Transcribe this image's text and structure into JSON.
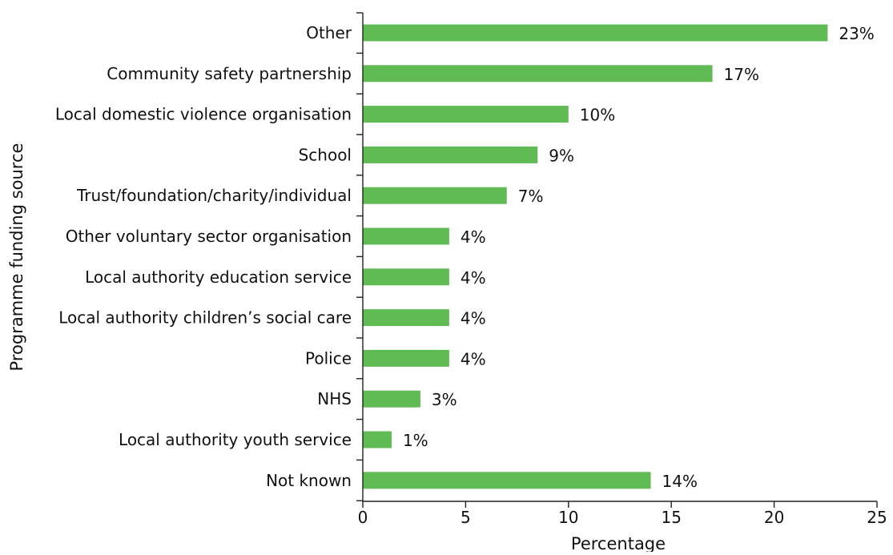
{
  "chart_data": {
    "type": "bar",
    "orientation": "horizontal",
    "categories": [
      "Other",
      "Community safety partnership",
      "Local domestic violence organisation",
      "School",
      "Trust/foundation/charity/individual",
      "Other voluntary sector organisation",
      "Local authority education service",
      "Local authority children’s social care",
      "Police",
      "NHS",
      "Local authority youth service",
      "Not known"
    ],
    "values": [
      22.6,
      17,
      10,
      8.5,
      7,
      4.2,
      4.2,
      4.2,
      4.2,
      2.8,
      1.4,
      14
    ],
    "data_labels": [
      "23%",
      "17%",
      "10%",
      "9%",
      "7%",
      "4%",
      "4%",
      "4%",
      "4%",
      "3%",
      "1%",
      "14%"
    ],
    "xlabel": "Percentage",
    "ylabel": "Programme funding source",
    "xlim": [
      0,
      25
    ],
    "xticks": [
      0,
      5,
      10,
      15,
      20,
      25
    ],
    "grid": false,
    "legend": "none",
    "bar_color": "#60bb54"
  }
}
